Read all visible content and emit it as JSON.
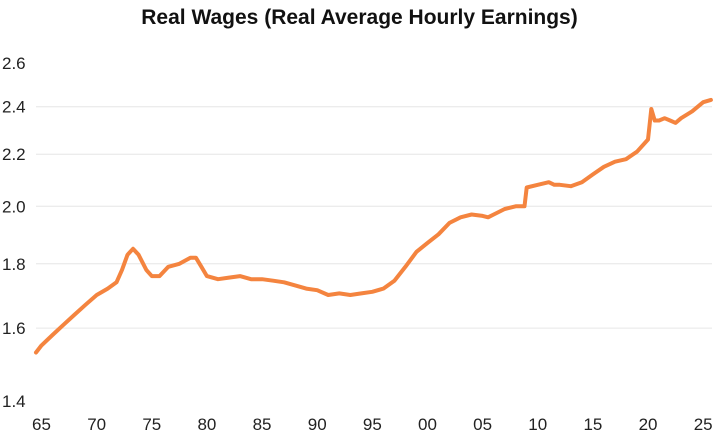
{
  "chart_data": {
    "type": "line",
    "title": "Real Wages (Real Average Hourly Earnings)",
    "xlabel": "",
    "ylabel": "",
    "y_scale": "log",
    "ylim": [
      1.4,
      2.6
    ],
    "y_ticks": [
      1.4,
      1.6,
      1.8,
      2.0,
      2.2,
      2.4,
      2.6
    ],
    "y_tick_labels": [
      "1.4",
      "1.6",
      "1.8",
      "2.0",
      "2.2",
      "2.4",
      "2.6"
    ],
    "xlim": [
      1964.5,
      2025.8
    ],
    "x_ticks": [
      1965,
      1970,
      1975,
      1980,
      1985,
      1990,
      1995,
      2000,
      2005,
      2010,
      2015,
      2020,
      2025
    ],
    "x_tick_labels": [
      "65",
      "70",
      "75",
      "80",
      "85",
      "90",
      "95",
      "00",
      "05",
      "10",
      "15",
      "20",
      "25"
    ],
    "grid": {
      "horizontal": true,
      "vertical": false
    },
    "legend": "none",
    "series": [
      {
        "color": "#f4843f",
        "points": [
          [
            1964.5,
            1.53
          ],
          [
            1965.0,
            1.55
          ],
          [
            1966.0,
            1.58
          ],
          [
            1967.0,
            1.61
          ],
          [
            1968.0,
            1.64
          ],
          [
            1969.0,
            1.67
          ],
          [
            1970.0,
            1.7
          ],
          [
            1971.0,
            1.72
          ],
          [
            1971.8,
            1.74
          ],
          [
            1972.3,
            1.78
          ],
          [
            1972.8,
            1.83
          ],
          [
            1973.3,
            1.85
          ],
          [
            1973.8,
            1.83
          ],
          [
            1974.5,
            1.78
          ],
          [
            1975.0,
            1.76
          ],
          [
            1975.7,
            1.76
          ],
          [
            1976.5,
            1.79
          ],
          [
            1977.5,
            1.8
          ],
          [
            1978.5,
            1.82
          ],
          [
            1979.0,
            1.82
          ],
          [
            1979.5,
            1.79
          ],
          [
            1980.0,
            1.76
          ],
          [
            1981.0,
            1.75
          ],
          [
            1982.0,
            1.755
          ],
          [
            1983.0,
            1.76
          ],
          [
            1984.0,
            1.75
          ],
          [
            1985.0,
            1.75
          ],
          [
            1986.0,
            1.745
          ],
          [
            1987.0,
            1.74
          ],
          [
            1988.0,
            1.73
          ],
          [
            1989.0,
            1.72
          ],
          [
            1990.0,
            1.715
          ],
          [
            1991.0,
            1.7
          ],
          [
            1992.0,
            1.705
          ],
          [
            1993.0,
            1.7
          ],
          [
            1994.0,
            1.705
          ],
          [
            1995.0,
            1.71
          ],
          [
            1996.0,
            1.72
          ],
          [
            1997.0,
            1.745
          ],
          [
            1998.0,
            1.79
          ],
          [
            1999.0,
            1.84
          ],
          [
            2000.0,
            1.87
          ],
          [
            2001.0,
            1.9
          ],
          [
            2002.0,
            1.94
          ],
          [
            2003.0,
            1.96
          ],
          [
            2004.0,
            1.97
          ],
          [
            2005.0,
            1.965
          ],
          [
            2005.5,
            1.96
          ],
          [
            2006.0,
            1.97
          ],
          [
            2007.0,
            1.99
          ],
          [
            2008.0,
            2.0
          ],
          [
            2008.8,
            2.0
          ],
          [
            2009.0,
            2.07
          ],
          [
            2010.0,
            2.08
          ],
          [
            2011.0,
            2.09
          ],
          [
            2011.5,
            2.08
          ],
          [
            2012.0,
            2.08
          ],
          [
            2013.0,
            2.075
          ],
          [
            2014.0,
            2.09
          ],
          [
            2015.0,
            2.12
          ],
          [
            2016.0,
            2.15
          ],
          [
            2017.0,
            2.17
          ],
          [
            2018.0,
            2.18
          ],
          [
            2019.0,
            2.21
          ],
          [
            2020.0,
            2.26
          ],
          [
            2020.3,
            2.39
          ],
          [
            2020.6,
            2.34
          ],
          [
            2021.0,
            2.34
          ],
          [
            2021.5,
            2.35
          ],
          [
            2022.0,
            2.34
          ],
          [
            2022.5,
            2.33
          ],
          [
            2023.0,
            2.35
          ],
          [
            2024.0,
            2.38
          ],
          [
            2025.0,
            2.42
          ],
          [
            2025.7,
            2.43
          ]
        ]
      }
    ]
  }
}
